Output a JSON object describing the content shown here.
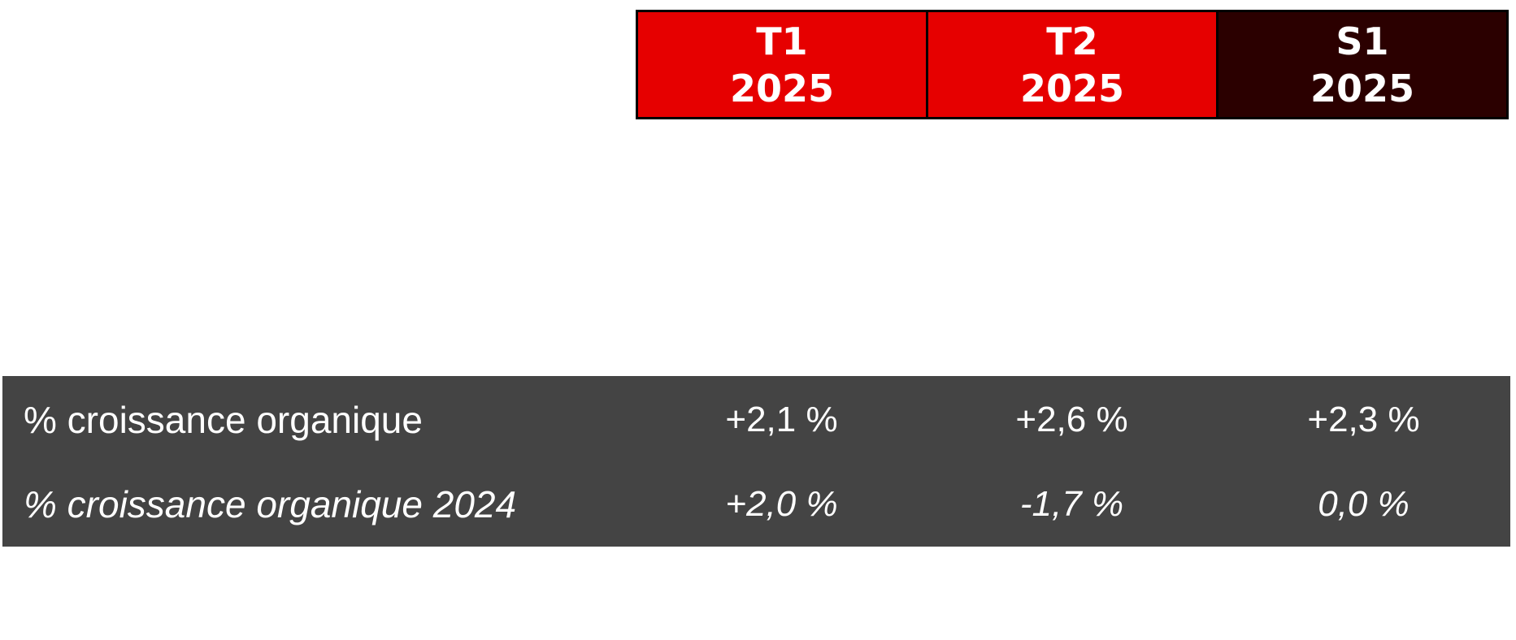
{
  "header": {
    "columns": [
      {
        "line1": "T1",
        "line2": "2025",
        "color": "#e60000"
      },
      {
        "line1": "T2",
        "line2": "2025",
        "color": "#e60000"
      },
      {
        "line1": "S1",
        "line2": "2025",
        "color": "#2b0000"
      }
    ]
  },
  "rows": [
    {
      "label": "% croissance organique",
      "values": [
        "+2,1 %",
        "+2,6 %",
        "+2,3 %"
      ]
    },
    {
      "label": "% croissance organique 2024",
      "values": [
        "+2,0 %",
        "-1,7 %",
        "0,0 %"
      ]
    }
  ],
  "colors": {
    "data_background": "#444444",
    "text": "#ffffff",
    "border": "#000000"
  }
}
